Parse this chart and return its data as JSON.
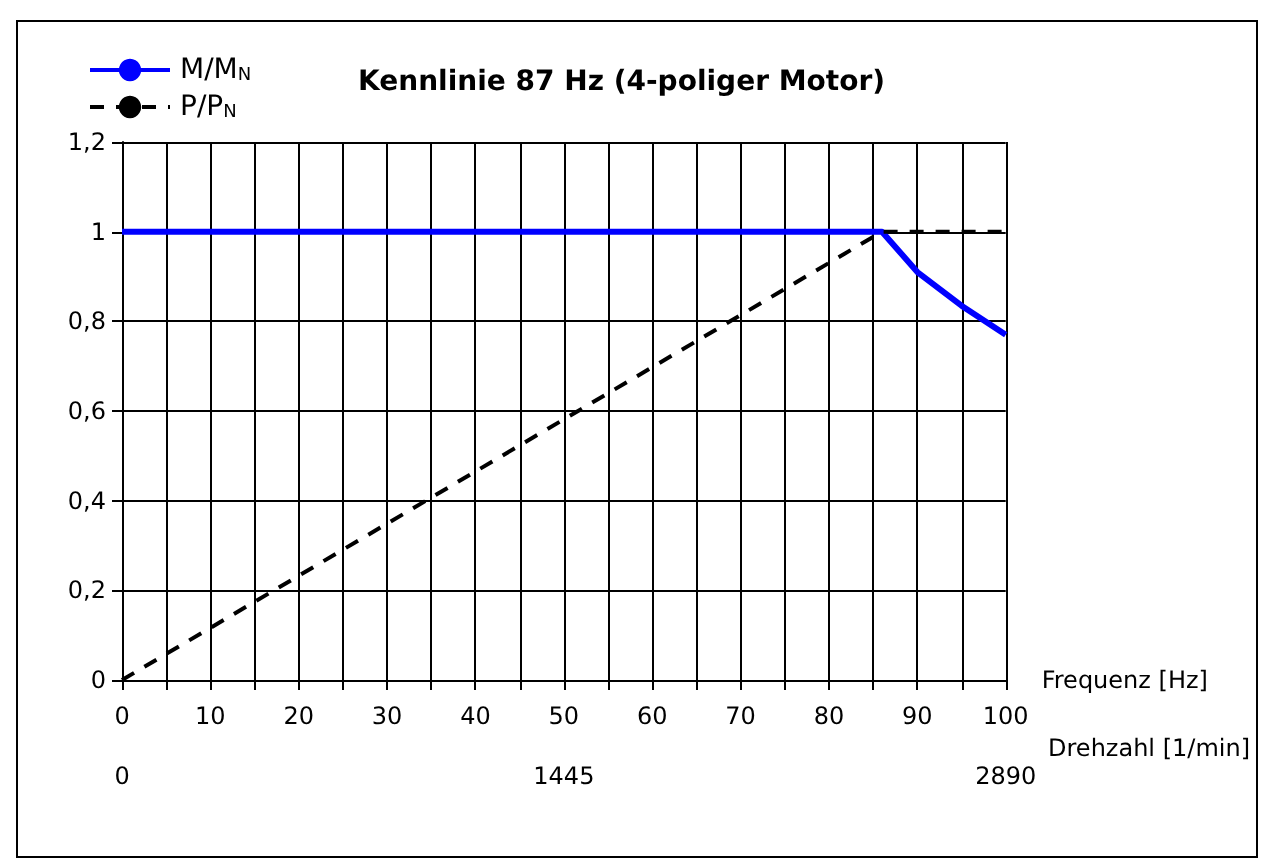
{
  "chart_data": {
    "type": "line",
    "title": "Kennlinie 87 Hz (4-poliger Motor)",
    "xlabel": "Frequenz [Hz]",
    "x2label": "Drehzahl [1/min]",
    "series": [
      {
        "name": "M/M$_{N}$",
        "color": "#0000ff",
        "line_style": "solid",
        "x": [
          0,
          86,
          90,
          95,
          100
        ],
        "values": [
          1,
          1,
          0.91,
          0.835,
          0.77
        ]
      },
      {
        "name": "P/P$_{N}$",
        "color": "#000000",
        "line_style": "dashed",
        "x": [
          0,
          86,
          100
        ],
        "values": [
          0,
          1,
          1
        ]
      }
    ],
    "xlim": [
      0,
      100
    ],
    "xticks": [
      0,
      {
        "value": 5,
        "label": null
      },
      10,
      {
        "value": 15,
        "label": null
      },
      20,
      {
        "value": 25,
        "label": null
      },
      30,
      {
        "value": 35,
        "label": null
      },
      40,
      {
        "value": 45,
        "label": null
      },
      50,
      {
        "value": 55,
        "label": null
      },
      60,
      {
        "value": 65,
        "label": null
      },
      70,
      {
        "value": 75,
        "label": null
      },
      80,
      {
        "value": 85,
        "label": null
      },
      90,
      {
        "value": 95,
        "label": null
      },
      100
    ],
    "x2lim": [
      0,
      2890
    ],
    "x2ticks": [
      0,
      1445,
      2890
    ],
    "ylim": [
      0,
      1.2
    ],
    "yticks": [
      0,
      {
        "value": 0.2,
        "label": "0,2"
      },
      {
        "value": 0.4,
        "label": "0,4"
      },
      {
        "value": 0.6,
        "label": "0,6"
      },
      {
        "value": 0.8,
        "label": "0,8"
      },
      1,
      {
        "value": 1.2,
        "label": "1,2"
      }
    ],
    "grid": true,
    "legend": "top left",
    "marker": "none"
  }
}
